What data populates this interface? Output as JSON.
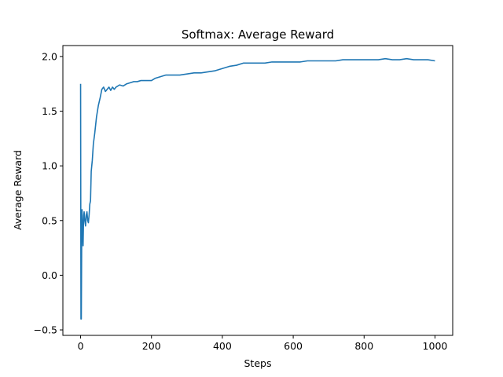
{
  "chart_data": {
    "type": "line",
    "title": "Softmax: Average Reward",
    "xlabel": "Steps",
    "ylabel": "Average Reward",
    "xlim": [
      -50,
      1050
    ],
    "ylim": [
      -0.55,
      2.1
    ],
    "xticks": [
      0,
      200,
      400,
      600,
      800,
      1000
    ],
    "yticks": [
      -0.5,
      0.0,
      0.5,
      1.0,
      1.5,
      2.0
    ],
    "xtick_labels": [
      "0",
      "200",
      "400",
      "600",
      "800",
      "1000"
    ],
    "ytick_labels": [
      "−0.5",
      "0.0",
      "0.5",
      "1.0",
      "1.5",
      "2.0"
    ],
    "grid": false,
    "series": [
      {
        "color": "#1f77b4",
        "x": [
          0,
          1,
          2,
          3,
          4,
          5,
          6,
          7,
          8,
          9,
          10,
          12,
          14,
          16,
          18,
          20,
          22,
          24,
          26,
          28,
          30,
          33,
          36,
          40,
          45,
          50,
          55,
          60,
          65,
          70,
          75,
          80,
          85,
          90,
          95,
          100,
          110,
          120,
          130,
          140,
          150,
          160,
          170,
          180,
          190,
          200,
          210,
          220,
          230,
          240,
          250,
          260,
          280,
          300,
          320,
          340,
          360,
          380,
          400,
          420,
          440,
          460,
          480,
          500,
          520,
          540,
          560,
          580,
          600,
          620,
          640,
          660,
          680,
          700,
          720,
          740,
          760,
          780,
          800,
          820,
          840,
          860,
          880,
          900,
          920,
          940,
          960,
          980,
          1000
        ],
        "y": [
          1.75,
          -0.4,
          -0.4,
          0.25,
          0.6,
          0.5,
          0.4,
          0.27,
          0.45,
          0.55,
          0.58,
          0.5,
          0.45,
          0.55,
          0.58,
          0.5,
          0.48,
          0.55,
          0.65,
          0.68,
          0.95,
          1.05,
          1.2,
          1.3,
          1.45,
          1.55,
          1.62,
          1.7,
          1.72,
          1.68,
          1.7,
          1.72,
          1.69,
          1.72,
          1.7,
          1.72,
          1.74,
          1.73,
          1.75,
          1.76,
          1.77,
          1.77,
          1.78,
          1.78,
          1.78,
          1.78,
          1.8,
          1.81,
          1.82,
          1.83,
          1.83,
          1.83,
          1.83,
          1.84,
          1.85,
          1.85,
          1.86,
          1.87,
          1.89,
          1.91,
          1.92,
          1.94,
          1.94,
          1.94,
          1.94,
          1.95,
          1.95,
          1.95,
          1.95,
          1.95,
          1.96,
          1.96,
          1.96,
          1.96,
          1.96,
          1.97,
          1.97,
          1.97,
          1.97,
          1.97,
          1.97,
          1.98,
          1.97,
          1.97,
          1.98,
          1.97,
          1.97,
          1.97,
          1.96
        ]
      }
    ]
  }
}
